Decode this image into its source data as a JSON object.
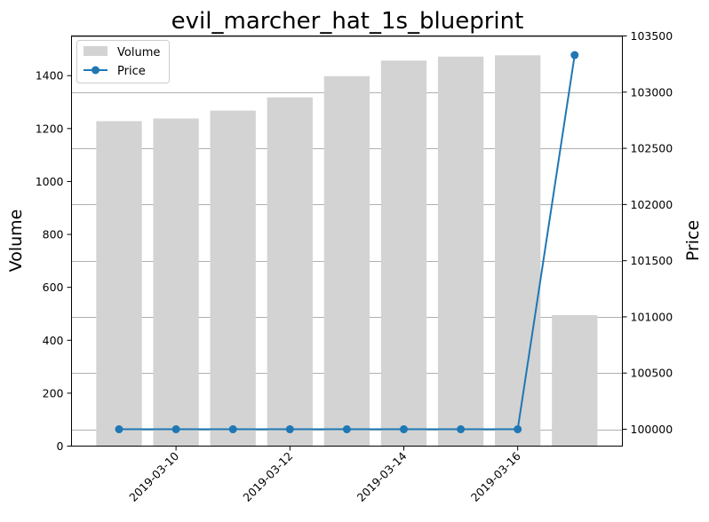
{
  "chart_data": {
    "type": "bar",
    "title": "evil_marcher_hat_1s_blueprint",
    "ylabel": "Volume",
    "y2label": "Price",
    "x": [
      "2019-03-09",
      "2019-03-10",
      "2019-03-11",
      "2019-03-12",
      "2019-03-13",
      "2019-03-14",
      "2019-03-15",
      "2019-03-16",
      "2019-03-17"
    ],
    "x_tick_labels": [
      "2019-03-10",
      "2019-03-12",
      "2019-03-14",
      "2019-03-16"
    ],
    "ylim": [
      0,
      1550
    ],
    "y_ticks": [
      0,
      200,
      400,
      600,
      800,
      1000,
      1200,
      1400
    ],
    "y2lim": [
      99850,
      103500
    ],
    "y2_ticks": [
      100000,
      100500,
      101000,
      101500,
      102000,
      102500,
      103000,
      103500
    ],
    "grid": "horizontal lines on price axis",
    "legend_position": "top-left",
    "series": [
      {
        "name": "Volume",
        "type": "bar",
        "axis": "left",
        "color": "#d3d3d3",
        "values": [
          1228,
          1238,
          1268,
          1318,
          1398,
          1457,
          1472,
          1477,
          495
        ]
      },
      {
        "name": "Price",
        "type": "line",
        "axis": "right",
        "color": "#1f77b4",
        "marker": "circle",
        "values": [
          100000,
          100000,
          100000,
          100000,
          100000,
          100000,
          100000,
          100000,
          103330
        ]
      }
    ]
  }
}
